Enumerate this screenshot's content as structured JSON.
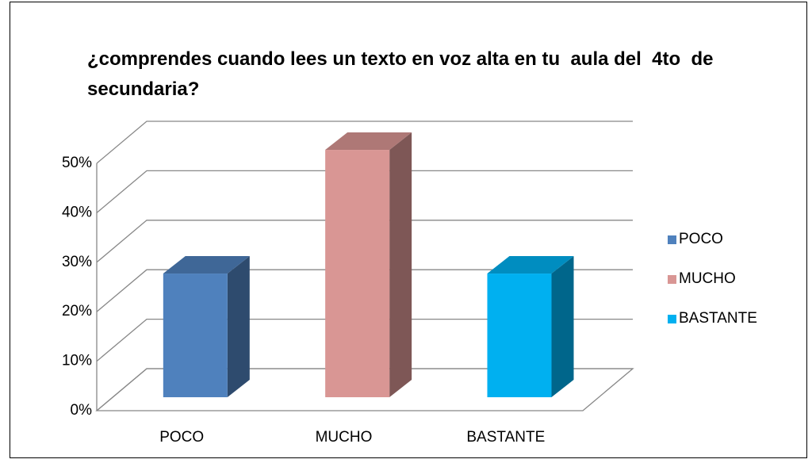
{
  "chart_data": {
    "type": "bar3d",
    "title": "¿comprendes cuando lees un texto en voz alta en tu  aula del  4to  de secundaria?",
    "categories": [
      "POCO",
      "MUCHO",
      "BASTANTE"
    ],
    "values": [
      25,
      50,
      25
    ],
    "colors": [
      "#4f81bd",
      "#d99694",
      "#00b0f0"
    ],
    "ylim": [
      0,
      50
    ],
    "yticks": [
      {
        "value": 0,
        "label": "0%"
      },
      {
        "value": 10,
        "label": "10%"
      },
      {
        "value": 20,
        "label": "20%"
      },
      {
        "value": 30,
        "label": "30%"
      },
      {
        "value": 40,
        "label": "40%"
      },
      {
        "value": 50,
        "label": "50%"
      }
    ],
    "grid": true,
    "legend": "right"
  }
}
